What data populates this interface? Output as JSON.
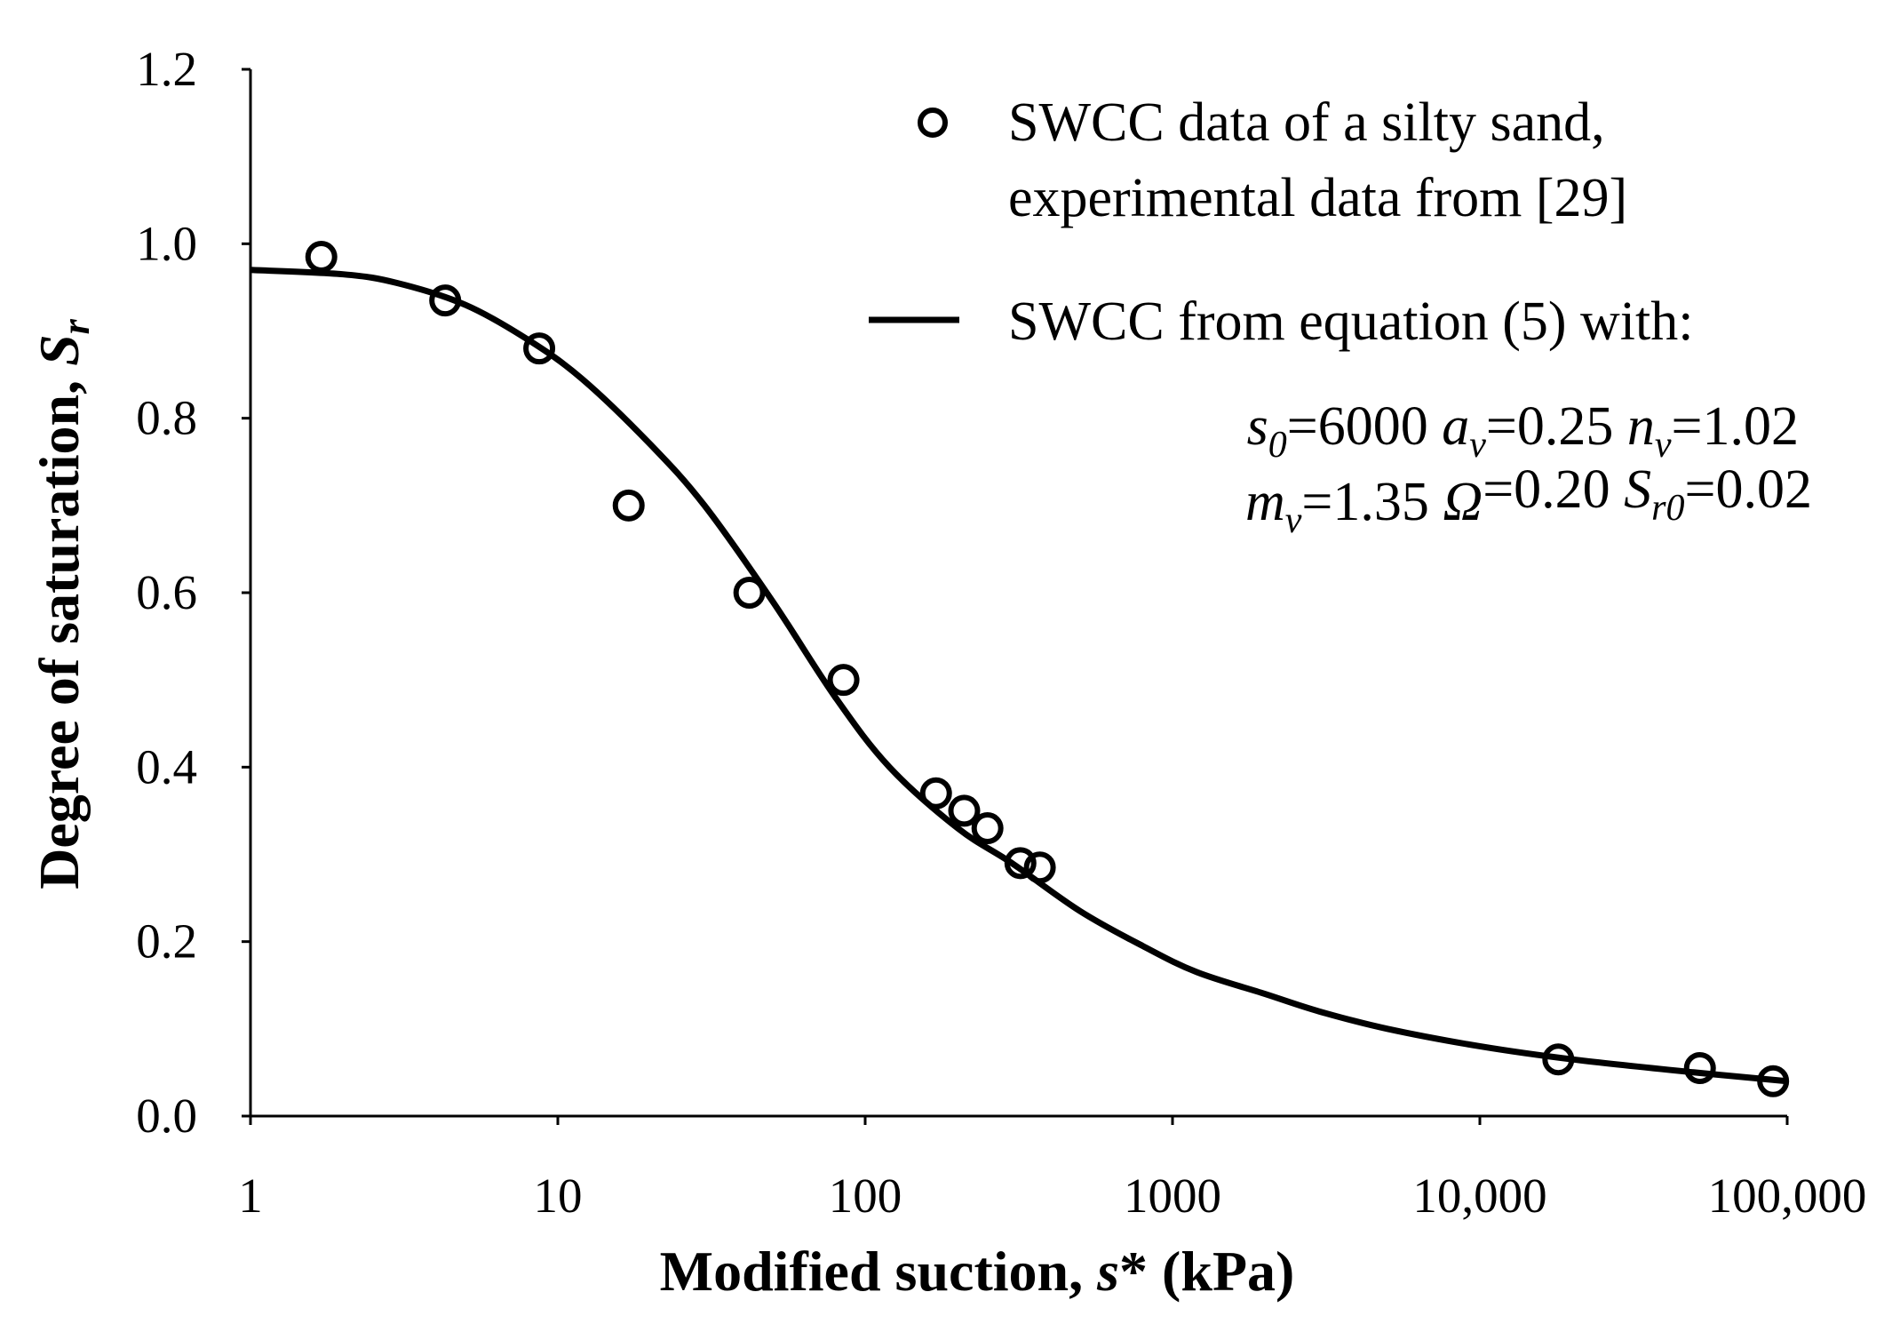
{
  "chart_data": {
    "type": "scatter",
    "xscale": "log",
    "xlim": [
      1,
      100000
    ],
    "ylim": [
      0,
      1.2
    ],
    "grid": false,
    "legend_position": "top-right",
    "xlabel": {
      "prefix": "Modified suction, ",
      "symbol": "s",
      "suffix": "* (kPa)"
    },
    "ylabel": {
      "prefix": "Degree of saturation, ",
      "symbol": "S",
      "subscript": "r"
    },
    "x_ticks": [
      {
        "value": 1,
        "label": "1"
      },
      {
        "value": 10,
        "label": "10"
      },
      {
        "value": 100,
        "label": "100"
      },
      {
        "value": 1000,
        "label": "1000"
      },
      {
        "value": 10000,
        "label": "10,000"
      },
      {
        "value": 100000,
        "label": "100,000"
      }
    ],
    "y_ticks": [
      {
        "value": 0.0,
        "label": "0.0"
      },
      {
        "value": 0.2,
        "label": "0.2"
      },
      {
        "value": 0.4,
        "label": "0.4"
      },
      {
        "value": 0.6,
        "label": "0.6"
      },
      {
        "value": 0.8,
        "label": "0.8"
      },
      {
        "value": 1.0,
        "label": "1.0"
      },
      {
        "value": 1.2,
        "label": "1.2"
      }
    ],
    "series": [
      {
        "name": "SWCC data of a silty sand, experimental data from [29]",
        "legend_lines": [
          "SWCC data of a silty sand,",
          "experimental data from [29]"
        ],
        "type": "scatter",
        "marker": "open-circle",
        "color": "#000000",
        "x": [
          1.7,
          4.3,
          8.7,
          17,
          42,
          85,
          170,
          210,
          250,
          320,
          370,
          18000,
          52000,
          90000
        ],
        "y": [
          0.985,
          0.935,
          0.88,
          0.7,
          0.6,
          0.5,
          0.37,
          0.35,
          0.33,
          0.29,
          0.285,
          0.065,
          0.055,
          0.04
        ]
      },
      {
        "name": "SWCC from equation (5) with:",
        "type": "line",
        "color": "#000000",
        "x": [
          1,
          2,
          3,
          5,
          8,
          12,
          20,
          30,
          50,
          80,
          120,
          200,
          300,
          500,
          800,
          1200,
          2000,
          3000,
          5000,
          10000,
          20000,
          50000,
          100000
        ],
        "y": [
          0.97,
          0.965,
          0.955,
          0.93,
          0.89,
          0.845,
          0.77,
          0.7,
          0.59,
          0.48,
          0.4,
          0.33,
          0.29,
          0.235,
          0.195,
          0.165,
          0.14,
          0.12,
          0.1,
          0.08,
          0.065,
          0.05,
          0.04
        ]
      }
    ],
    "annotation": {
      "line1": [
        {
          "sym": "s",
          "sub": "0",
          "val": "=6000 "
        },
        {
          "sym": "a",
          "sub": "v",
          "val": "=0.25 "
        },
        {
          "sym": "n",
          "sub": "v",
          "val": "=1.02"
        }
      ],
      "line2": [
        {
          "sym": "m",
          "sub": "v",
          "val": "=1.35 "
        },
        {
          "sym": "Ω",
          "sub": "",
          "val": "=0.20 "
        },
        {
          "sym": "S",
          "sub": "r0",
          "val": "=0.02"
        }
      ]
    }
  }
}
